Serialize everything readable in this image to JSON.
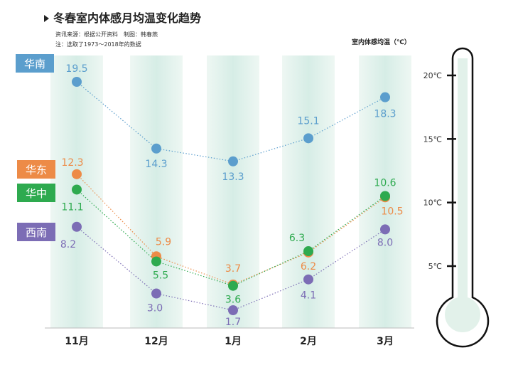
{
  "header": {
    "title": "冬春室内体感月均温变化趋势",
    "source": "资讯来源：根据公开资料　制图：韩春燕",
    "note": "注：选取了1973～2018年的数据"
  },
  "chart_data": {
    "type": "line",
    "title": "冬春室内体感月均温变化趋势",
    "ylabel": "室内体感均温（℃）",
    "categories": [
      "11月",
      "12月",
      "1月",
      "2月",
      "3月"
    ],
    "series": [
      {
        "name": "华南",
        "color": "#5b9ecd",
        "values": [
          19.5,
          14.3,
          13.3,
          15.1,
          18.3
        ]
      },
      {
        "name": "华东",
        "color": "#ed8b47",
        "values": [
          12.3,
          5.9,
          3.7,
          6.2,
          10.5
        ]
      },
      {
        "name": "华中",
        "color": "#2eaa4f",
        "values": [
          11.1,
          5.5,
          3.6,
          6.3,
          10.6
        ]
      },
      {
        "name": "西南",
        "color": "#7c6db5",
        "values": [
          8.2,
          3.0,
          1.7,
          4.1,
          8.0
        ]
      }
    ],
    "thermometer_ticks": [
      "20℃",
      "15℃",
      "10℃",
      "5℃"
    ],
    "thermometer_values": [
      20,
      15,
      10,
      5
    ]
  }
}
